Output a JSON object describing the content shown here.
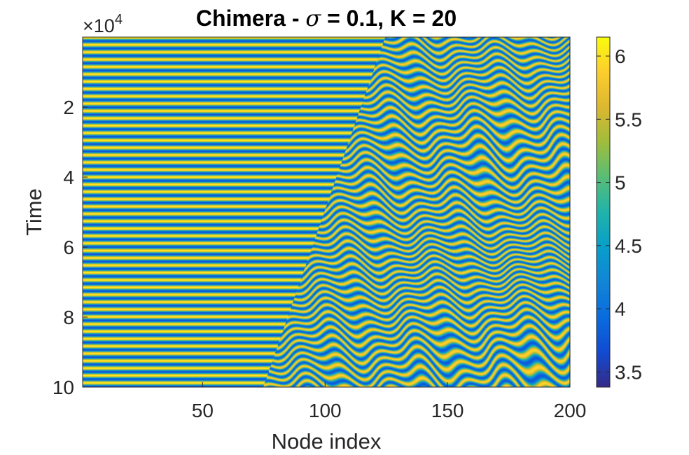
{
  "chart_data": {
    "type": "heatmap",
    "title_prefix": "Chimera - ",
    "title_symbol": "σ",
    "title_suffix": " = 0.1, K = 20",
    "xlabel": "Node index",
    "ylabel": "Time",
    "xlim": [
      1,
      200
    ],
    "ylim": [
      0,
      100000
    ],
    "y_direction": "reversed",
    "y_multiplier": {
      "base": "×10",
      "exponent": "4"
    },
    "xticks": [
      50,
      100,
      150,
      200
    ],
    "xtick_labels": [
      "50",
      "100",
      "150",
      "200"
    ],
    "yticks": [
      20000,
      40000,
      60000,
      80000,
      100000
    ],
    "ytick_labels": [
      "2",
      "4",
      "6",
      "8",
      "10"
    ],
    "colorbar": {
      "range": [
        3.38,
        6.15
      ],
      "ticks": [
        3.5,
        4,
        4.5,
        5,
        5.5,
        6
      ],
      "tick_labels": [
        "3.5",
        "4",
        "4.5",
        "5",
        "5.5",
        "6"
      ],
      "colormap": "parula"
    },
    "grid": false
  }
}
